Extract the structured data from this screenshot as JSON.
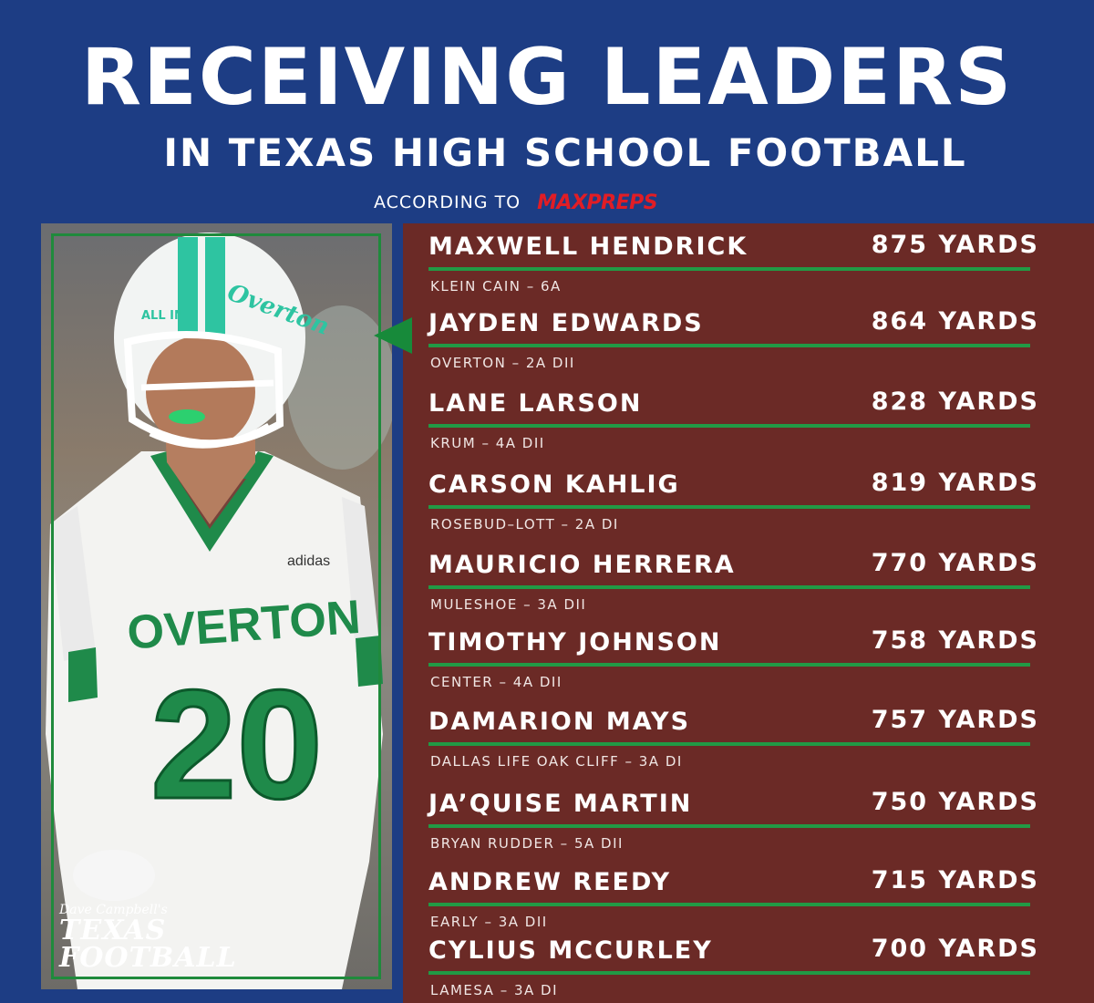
{
  "header": {
    "title": "RECEIVING LEADERS",
    "subtitle": "IN TEXAS HIGH SCHOOL FOOTBALL",
    "according_to": "ACCORDING TO",
    "source_logo": "MAXPREPS"
  },
  "photo": {
    "jersey_team": "OVERTON",
    "jersey_number": "20",
    "jersey_brand": "adidas",
    "helmet_text": "Overton",
    "helmet_slogan": "ALL IN",
    "watermark_small": "Dave Campbell's",
    "watermark_line1": "TEXAS",
    "watermark_line2": "FOOTBALL"
  },
  "leaders": [
    {
      "name": "MAXWELL HENDRICK",
      "yards": "875 YARDS",
      "school": "KLEIN CAIN – 6A"
    },
    {
      "name": "JAYDEN EDWARDS",
      "yards": "864 YARDS",
      "school": "OVERTON – 2A DII"
    },
    {
      "name": "LANE LARSON",
      "yards": "828 YARDS",
      "school": "KRUM – 4A DII"
    },
    {
      "name": "CARSON KAHLIG",
      "yards": "819 YARDS",
      "school": "ROSEBUD–LOTT – 2A DI"
    },
    {
      "name": "MAURICIO HERRERA",
      "yards": "770 YARDS",
      "school": "MULESHOE – 3A DII"
    },
    {
      "name": "TIMOTHY JOHNSON",
      "yards": "758 YARDS",
      "school": "CENTER – 4A DII"
    },
    {
      "name": "DAMARION MAYS",
      "yards": "757 YARDS",
      "school": "DALLAS LIFE OAK CLIFF – 3A DI"
    },
    {
      "name": "JA’QUISE MARTIN",
      "yards": "750 YARDS",
      "school": "BRYAN RUDDER – 5A DII"
    },
    {
      "name": "ANDREW REEDY",
      "yards": "715 YARDS",
      "school": "EARLY – 3A DII"
    },
    {
      "name": "CYLIUS MCCURLEY",
      "yards": "700 YARDS",
      "school": "LAMESA – 3A DI"
    }
  ],
  "colors": {
    "background": "#1d3d84",
    "panel": "#6b2a26",
    "accent_green": "#219a45",
    "maxpreps_red": "#e11d25"
  }
}
